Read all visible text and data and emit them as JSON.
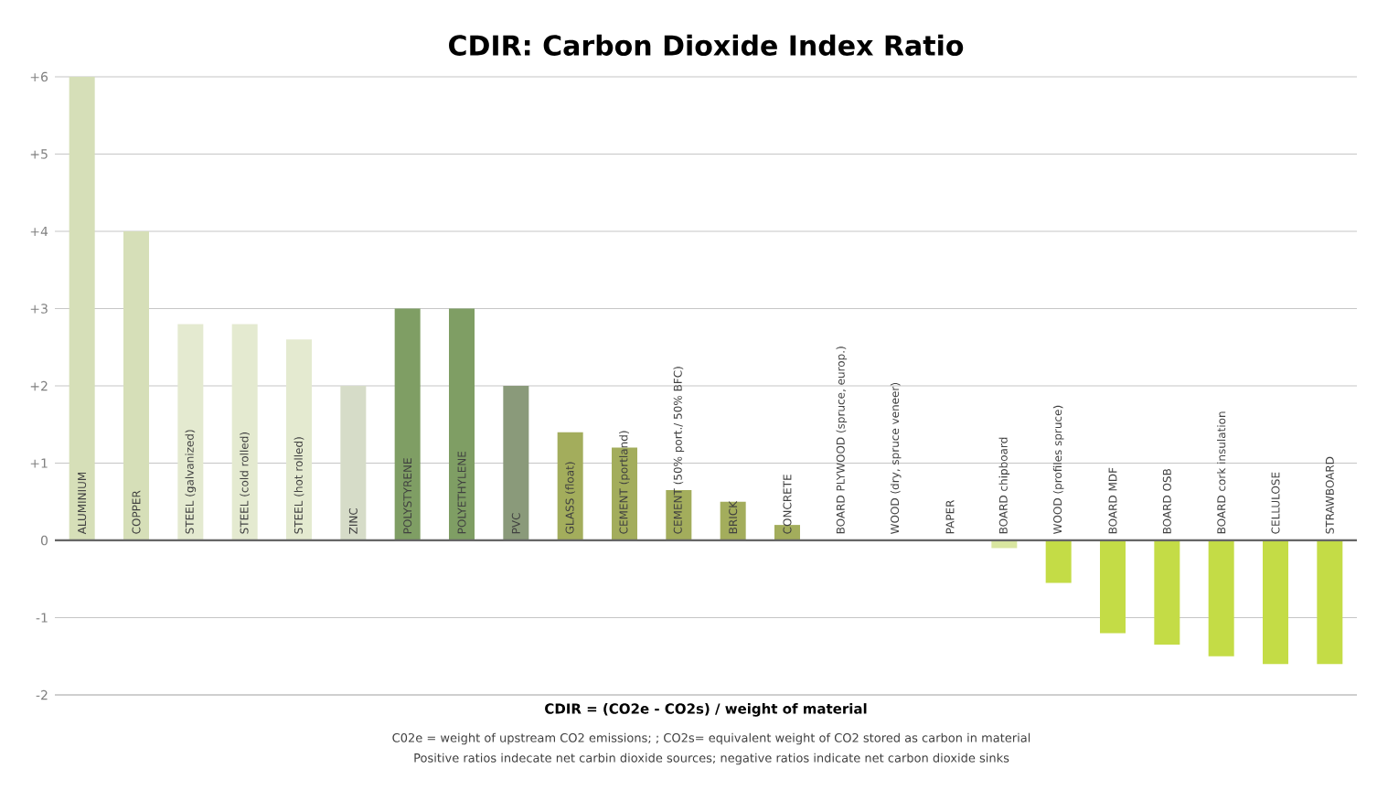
{
  "chart_data": {
    "type": "bar",
    "title": "CDIR: Carbon Dioxide Index Ratio",
    "xlabel": "CDIR = (CO2e - CO2s) / weight of material",
    "annotations": [
      "C02e = weight of upstream CO2 emissions; ; CO2s= equivalent weight of CO2 stored as carbon in material",
      "Positive ratios indecate net carbin dioxide sources; negative ratios indicate net carbon dioxide sinks"
    ],
    "categories": [
      "ALUMINIUM",
      "COPPER",
      "STEEL (galvanized)",
      "STEEL (cold rolled)",
      "STEEL (hot rolled)",
      "ZINC",
      "POLYSTYRENE",
      "POLYETHYLENE",
      "PVC",
      "GLASS (float)",
      "CEMENT (portland)",
      "CEMENT (50% port./ 50% BFC)",
      "BRICK",
      "CONCRETE",
      "BOARD PLYWOOD (spruce, europ.)",
      "WOOD (dry, spruce veneer)",
      "PAPER",
      "BOARD chipboard",
      "WOOD (profiles spruce)",
      "BOARD MDF",
      "BOARD OSB",
      "BOARD cork insulation",
      "CELLULOSE",
      "STRAWBOARD"
    ],
    "values": [
      6,
      4,
      2.8,
      2.8,
      2.6,
      2,
      3,
      3,
      2,
      1.4,
      1.2,
      0.65,
      0.5,
      0.2,
      0,
      0,
      0,
      -0.1,
      -0.55,
      -1.2,
      -1.35,
      -1.5,
      -1.6,
      -1.6
    ],
    "colors": [
      "#d6dfb8",
      "#d6dfb8",
      "#e4ead0",
      "#e4ead0",
      "#e4ead0",
      "#d6dcc8",
      "#7f9e64",
      "#7f9e64",
      "#8a9a7a",
      "#a3ad5c",
      "#a3ad5c",
      "#a3ad5c",
      "#a3ad5c",
      "#a3ad5c",
      "#d9e6a0",
      "#d9e6a0",
      "#d9e6a0",
      "#d9e6a0",
      "#c4dc46",
      "#c4dc46",
      "#c4dc46",
      "#c4dc46",
      "#c4dc46",
      "#c4dc46"
    ],
    "ylim": [
      -2,
      6
    ],
    "yticks": [
      {
        "value": 6,
        "label": "+6"
      },
      {
        "value": 5,
        "label": "+5"
      },
      {
        "value": 4,
        "label": "+4"
      },
      {
        "value": 3,
        "label": "+3"
      },
      {
        "value": 2,
        "label": "+2"
      },
      {
        "value": 1,
        "label": "+1"
      },
      0,
      -1,
      -2
    ],
    "grid": "y"
  }
}
